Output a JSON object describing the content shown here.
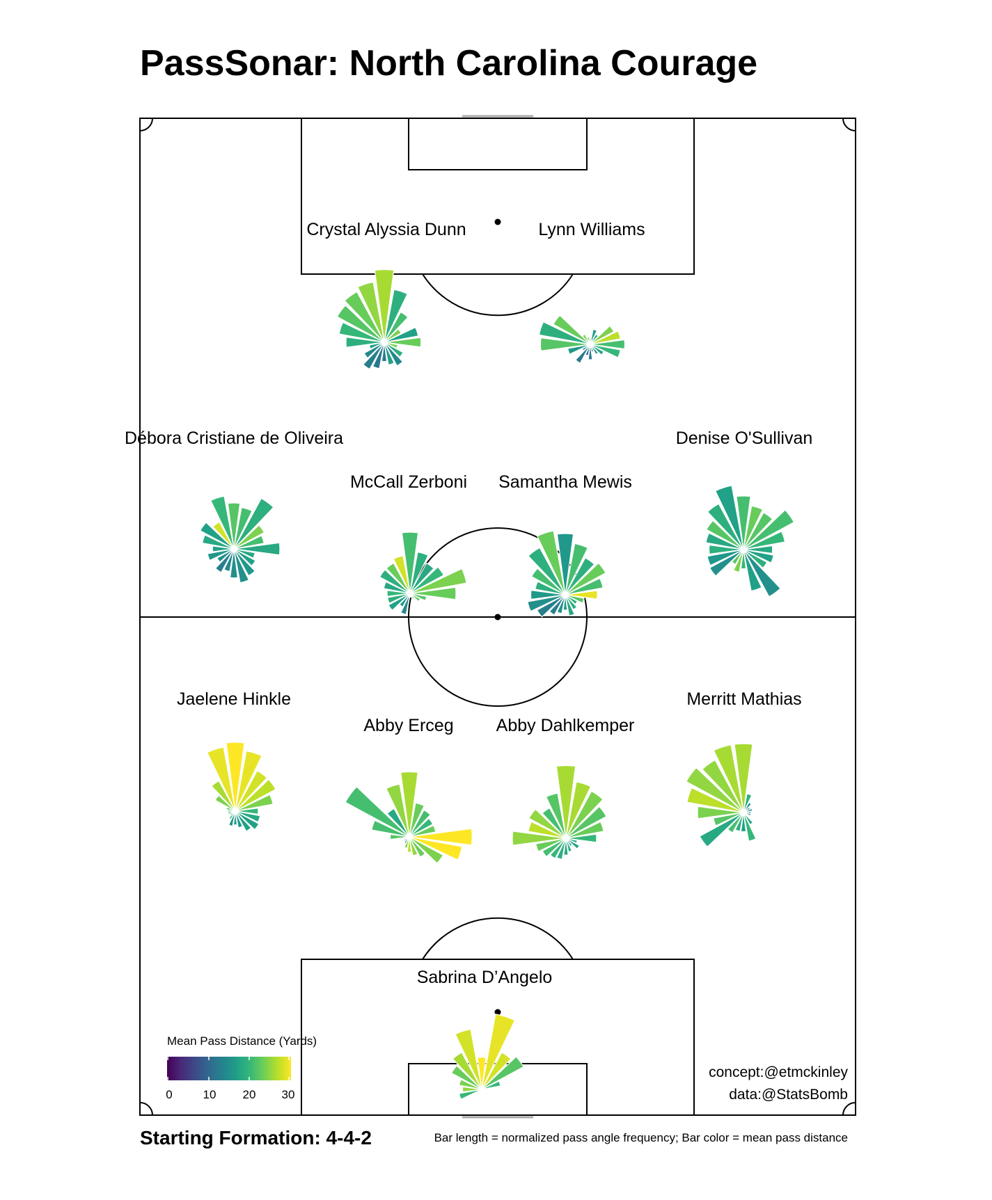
{
  "title": "PassSonar: North Carolina Courage",
  "formation_label": "Starting Formation: 4-4-2",
  "footnote": "Bar length = normalized pass angle frequency; Bar color = mean pass distance",
  "credits": {
    "concept": "concept:@etmckinley",
    "data": "data:@StatsBomb"
  },
  "colors": {
    "pitch_line": "#000000",
    "goal_line": "#aaaaaa",
    "bar_outline": "#ffffff",
    "viridis": [
      "#440154",
      "#482878",
      "#3e4989",
      "#31688e",
      "#26828e",
      "#1f9e89",
      "#35b779",
      "#6ece58",
      "#b5de2b",
      "#fde725"
    ]
  },
  "chart_data": {
    "type": "polar-bar",
    "title": "PassSonar: North Carolina Courage",
    "formation": "4-4-2",
    "bins": 20,
    "bin_width_deg": 18,
    "angle_convention": "degrees clockwise from attacking direction (up the page)",
    "legend": {
      "title": "Mean Pass Distance (Yards)",
      "ticks": [
        0,
        10,
        20,
        30
      ],
      "range": [
        0,
        30
      ],
      "colormap": "viridis"
    },
    "players": [
      {
        "name": "Crystal Alyssia Dunn",
        "role": "forward",
        "freq": [
          0.95,
          0.7,
          0.45,
          0.25,
          0.45,
          0.48,
          0.18,
          0.28,
          0.35,
          0.3,
          0.25,
          0.35,
          0.4,
          0.3,
          0.2,
          0.5,
          0.6,
          0.7,
          0.75,
          0.8
        ],
        "dist": [
          26,
          19,
          21,
          24,
          17,
          23,
          24,
          19,
          14,
          17,
          12,
          12,
          13,
          14,
          17,
          19,
          20,
          22,
          23,
          25
        ]
      },
      {
        "name": "Lynn Williams",
        "role": "forward",
        "freq": [
          0.08,
          0.2,
          0.15,
          0.35,
          0.4,
          0.45,
          0.4,
          0.2,
          0.15,
          0.1,
          0.2,
          0.15,
          0.28,
          0.12,
          0.3,
          0.65,
          0.68,
          0.55,
          0.15,
          0.1
        ],
        "dist": [
          27,
          16,
          19,
          24,
          27,
          21,
          20,
          17,
          16,
          14,
          12,
          11,
          12,
          14,
          16,
          22,
          19,
          23,
          24,
          22
        ]
      },
      {
        "name": "Débora Cristiane de Oliveira",
        "role": "midfielder",
        "freq": [
          0.6,
          0.55,
          0.75,
          0.45,
          0.4,
          0.6,
          0.28,
          0.32,
          0.4,
          0.45,
          0.38,
          0.3,
          0.35,
          0.25,
          0.35,
          0.28,
          0.42,
          0.5,
          0.4,
          0.7
        ],
        "dist": [
          22,
          21,
          19,
          24,
          21,
          18,
          18,
          17,
          16,
          15,
          15,
          14,
          13,
          15,
          16,
          17,
          18,
          17,
          28,
          20
        ]
      },
      {
        "name": "McCall Zerboni",
        "role": "midfielder",
        "freq": [
          0.8,
          0.55,
          0.45,
          0.5,
          0.75,
          0.6,
          0.22,
          0.15,
          0.08,
          0.05,
          0.05,
          0.28,
          0.2,
          0.32,
          0.3,
          0.3,
          0.35,
          0.45,
          0.45,
          0.5
        ],
        "dist": [
          21,
          19,
          18,
          20,
          24,
          23,
          22,
          22,
          20,
          18,
          16,
          14,
          16,
          17,
          19,
          20,
          18,
          19,
          23,
          28
        ]
      },
      {
        "name": "Samantha Mewis",
        "role": "midfielder",
        "freq": [
          0.8,
          0.68,
          0.55,
          0.6,
          0.5,
          0.42,
          0.25,
          0.18,
          0.22,
          0.28,
          0.2,
          0.25,
          0.3,
          0.42,
          0.5,
          0.45,
          0.4,
          0.5,
          0.7,
          0.85
        ],
        "dist": [
          16,
          21,
          19,
          23,
          21,
          29,
          22,
          19,
          19,
          18,
          16,
          15,
          13,
          13,
          15,
          16,
          19,
          21,
          19,
          23
        ]
      },
      {
        "name": "Denise O'Sullivan",
        "role": "midfielder",
        "freq": [
          0.7,
          0.58,
          0.55,
          0.75,
          0.55,
          0.38,
          0.4,
          0.35,
          0.7,
          0.55,
          0.25,
          0.3,
          0.22,
          0.5,
          0.48,
          0.45,
          0.5,
          0.55,
          0.68,
          0.85
        ],
        "dist": [
          21,
          23,
          22,
          21,
          20,
          18,
          17,
          19,
          15,
          17,
          20,
          24,
          22,
          15,
          16,
          19,
          18,
          22,
          19,
          17
        ]
      },
      {
        "name": "Jaelene Hinkle",
        "role": "defender",
        "freq": [
          0.9,
          0.8,
          0.6,
          0.6,
          0.5,
          0.3,
          0.33,
          0.35,
          0.3,
          0.22,
          0.18,
          0.2,
          0.12,
          0.08,
          0.1,
          0.1,
          0.12,
          0.3,
          0.45,
          0.85
        ],
        "dist": [
          30,
          29,
          28,
          27,
          24,
          20,
          18,
          17,
          17,
          16,
          17,
          15,
          20,
          18,
          21,
          20,
          22,
          24,
          26,
          29
        ]
      },
      {
        "name": "Abby Erceg",
        "role": "defender",
        "freq": [
          0.85,
          0.45,
          0.4,
          0.35,
          0.35,
          0.82,
          0.7,
          0.5,
          0.3,
          0.25,
          0.2,
          0.15,
          0.1,
          0.08,
          0.05,
          0.25,
          0.5,
          0.95,
          0.42,
          0.7
        ],
        "dist": [
          26,
          23,
          21,
          20,
          23,
          30,
          31,
          24,
          23,
          25,
          27,
          24,
          18,
          16,
          21,
          22,
          21,
          21,
          18,
          25
        ]
      },
      {
        "name": "Abby Dahlkemper",
        "role": "defender",
        "freq": [
          0.95,
          0.75,
          0.7,
          0.6,
          0.5,
          0.4,
          0.15,
          0.2,
          0.12,
          0.18,
          0.22,
          0.28,
          0.3,
          0.35,
          0.4,
          0.7,
          0.5,
          0.55,
          0.45,
          0.6
        ],
        "dist": [
          26,
          26,
          24,
          22,
          23,
          20,
          18,
          17,
          17,
          19,
          18,
          19,
          20,
          21,
          23,
          25,
          27,
          25,
          21,
          22
        ]
      },
      {
        "name": "Merritt Mathias",
        "role": "defender",
        "freq": [
          0.9,
          0.25,
          0.15,
          0.1,
          0.12,
          0.1,
          0.1,
          0.05,
          0.18,
          0.38,
          0.25,
          0.25,
          0.3,
          0.65,
          0.4,
          0.6,
          0.75,
          0.85,
          0.78,
          0.9
        ],
        "dist": [
          26,
          19,
          15,
          13,
          14,
          13,
          12,
          16,
          18,
          20,
          17,
          19,
          21,
          18,
          22,
          24,
          27,
          25,
          25,
          26
        ]
      },
      {
        "name": "Sabrina D’Angelo",
        "role": "goalkeeper",
        "freq": [
          0.42,
          1.0,
          0.55,
          0.62,
          0.25,
          0.05,
          0,
          0,
          0,
          0,
          0,
          0,
          0,
          0.05,
          0.3,
          0.25,
          0.3,
          0.45,
          0.55,
          0.8
        ],
        "dist": [
          30,
          29,
          28,
          22,
          20,
          18,
          0,
          0,
          0,
          0,
          0,
          0,
          0,
          18,
          20,
          25,
          24,
          23,
          26,
          28
        ]
      }
    ]
  }
}
